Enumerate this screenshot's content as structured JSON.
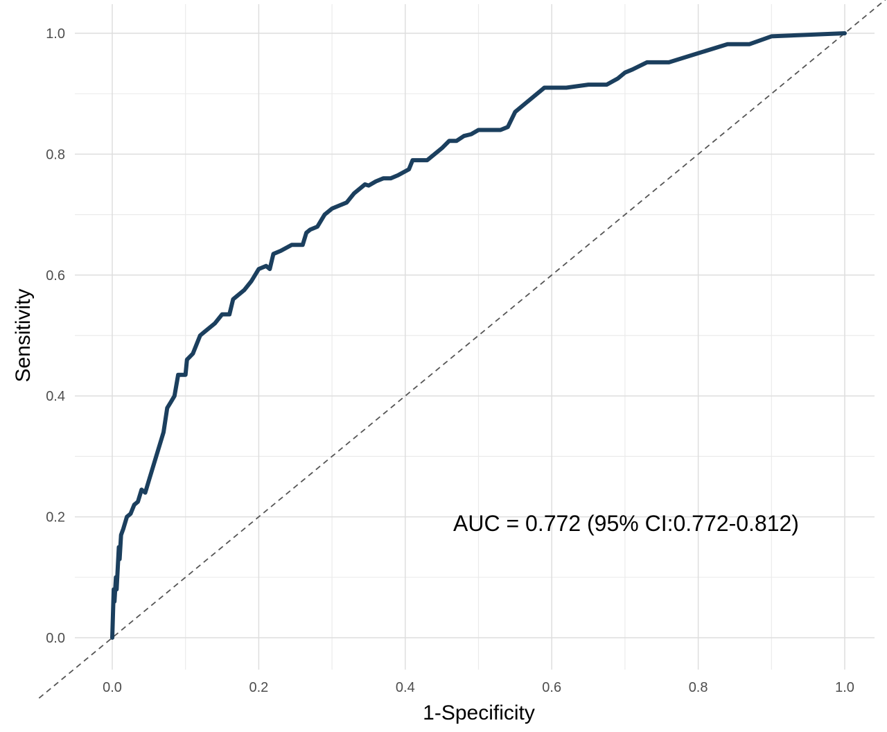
{
  "chart_data": {
    "type": "line",
    "title": "",
    "xlabel": "1-Specificity",
    "ylabel": "Sensitivity",
    "xlim": [
      -0.1,
      1.06
    ],
    "ylim": [
      -0.1,
      1.07
    ],
    "x_ticks": [
      0.0,
      0.2,
      0.4,
      0.6,
      0.8,
      1.0
    ],
    "y_ticks": [
      0.0,
      0.2,
      0.4,
      0.6,
      0.8,
      1.0
    ],
    "x_tick_labels": [
      "0.0",
      "0.2",
      "0.4",
      "0.6",
      "0.8",
      "1.0"
    ],
    "y_tick_labels": [
      "0.0",
      "0.2",
      "0.4",
      "0.6",
      "0.8",
      "1.0"
    ],
    "grid": true,
    "annotation": "AUC = 0.772 (95% CI:0.772-0.812)",
    "series": [
      {
        "color": "#1b3f5e",
        "x": [
          0.0,
          0.002,
          0.003,
          0.005,
          0.006,
          0.009,
          0.01,
          0.012,
          0.015,
          0.02,
          0.025,
          0.03,
          0.035,
          0.04,
          0.045,
          0.05,
          0.06,
          0.07,
          0.075,
          0.08,
          0.085,
          0.09,
          0.1,
          0.102,
          0.11,
          0.12,
          0.125,
          0.14,
          0.15,
          0.16,
          0.165,
          0.17,
          0.18,
          0.19,
          0.2,
          0.21,
          0.215,
          0.22,
          0.23,
          0.245,
          0.26,
          0.265,
          0.27,
          0.28,
          0.29,
          0.3,
          0.31,
          0.32,
          0.33,
          0.345,
          0.35,
          0.36,
          0.37,
          0.38,
          0.39,
          0.405,
          0.41,
          0.43,
          0.45,
          0.46,
          0.47,
          0.48,
          0.49,
          0.5,
          0.52,
          0.53,
          0.54,
          0.55,
          0.57,
          0.59,
          0.62,
          0.65,
          0.675,
          0.69,
          0.7,
          0.71,
          0.73,
          0.76,
          0.8,
          0.84,
          0.87,
          0.9,
          1.0
        ],
        "y": [
          0.0,
          0.08,
          0.06,
          0.1,
          0.08,
          0.15,
          0.13,
          0.17,
          0.18,
          0.2,
          0.205,
          0.22,
          0.225,
          0.245,
          0.24,
          0.26,
          0.3,
          0.34,
          0.38,
          0.39,
          0.4,
          0.435,
          0.435,
          0.46,
          0.47,
          0.5,
          0.505,
          0.52,
          0.535,
          0.535,
          0.56,
          0.565,
          0.575,
          0.59,
          0.61,
          0.615,
          0.61,
          0.635,
          0.64,
          0.65,
          0.65,
          0.67,
          0.675,
          0.68,
          0.7,
          0.71,
          0.715,
          0.72,
          0.735,
          0.75,
          0.748,
          0.755,
          0.76,
          0.76,
          0.765,
          0.775,
          0.79,
          0.79,
          0.81,
          0.822,
          0.822,
          0.83,
          0.833,
          0.84,
          0.84,
          0.84,
          0.845,
          0.87,
          0.89,
          0.91,
          0.91,
          0.915,
          0.915,
          0.925,
          0.935,
          0.94,
          0.952,
          0.952,
          0.967,
          0.982,
          0.982,
          0.995,
          1.0
        ]
      }
    ],
    "reference_line": {
      "x": [
        -0.1,
        1.06
      ],
      "y": [
        -0.1,
        1.06
      ],
      "color": "#555555",
      "dash": "dashed"
    }
  }
}
